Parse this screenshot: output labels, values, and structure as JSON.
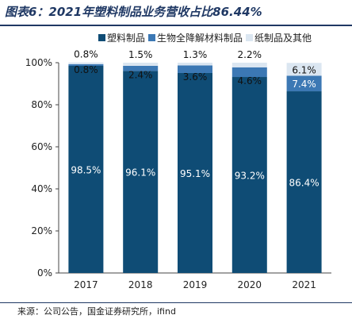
{
  "title": "图表6：2021年塑料制品业务营收占比86.44%",
  "source": "来源：公司公告，国金证券研究所，ifind",
  "chart_data": {
    "type": "bar",
    "stacked": true,
    "categories": [
      "2017",
      "2018",
      "2019",
      "2020",
      "2021"
    ],
    "series": [
      {
        "name": "塑料制品",
        "color": "#0f4c75",
        "values": [
          98.5,
          96.1,
          95.1,
          93.2,
          86.4
        ],
        "labels": [
          "98.5%",
          "96.1%",
          "95.1%",
          "93.2%",
          "86.4%"
        ]
      },
      {
        "name": "生物全降解材料制品",
        "color": "#3c78b4",
        "values": [
          0.8,
          2.4,
          3.6,
          4.6,
          7.4
        ],
        "labels": [
          "0.8%",
          "2.4%",
          "3.6%",
          "4.6%",
          "7.4%"
        ]
      },
      {
        "name": "纸制品及其他",
        "color": "#dbe6f1",
        "values": [
          0.8,
          1.5,
          1.3,
          2.2,
          6.1
        ],
        "labels": [
          "0.8%",
          "1.5%",
          "1.3%",
          "2.2%",
          "6.1%"
        ]
      }
    ],
    "ylim": [
      0,
      100
    ],
    "yticks": [
      "0%",
      "20%",
      "40%",
      "60%",
      "80%",
      "100%"
    ],
    "legend_position": "top",
    "grid": false
  }
}
